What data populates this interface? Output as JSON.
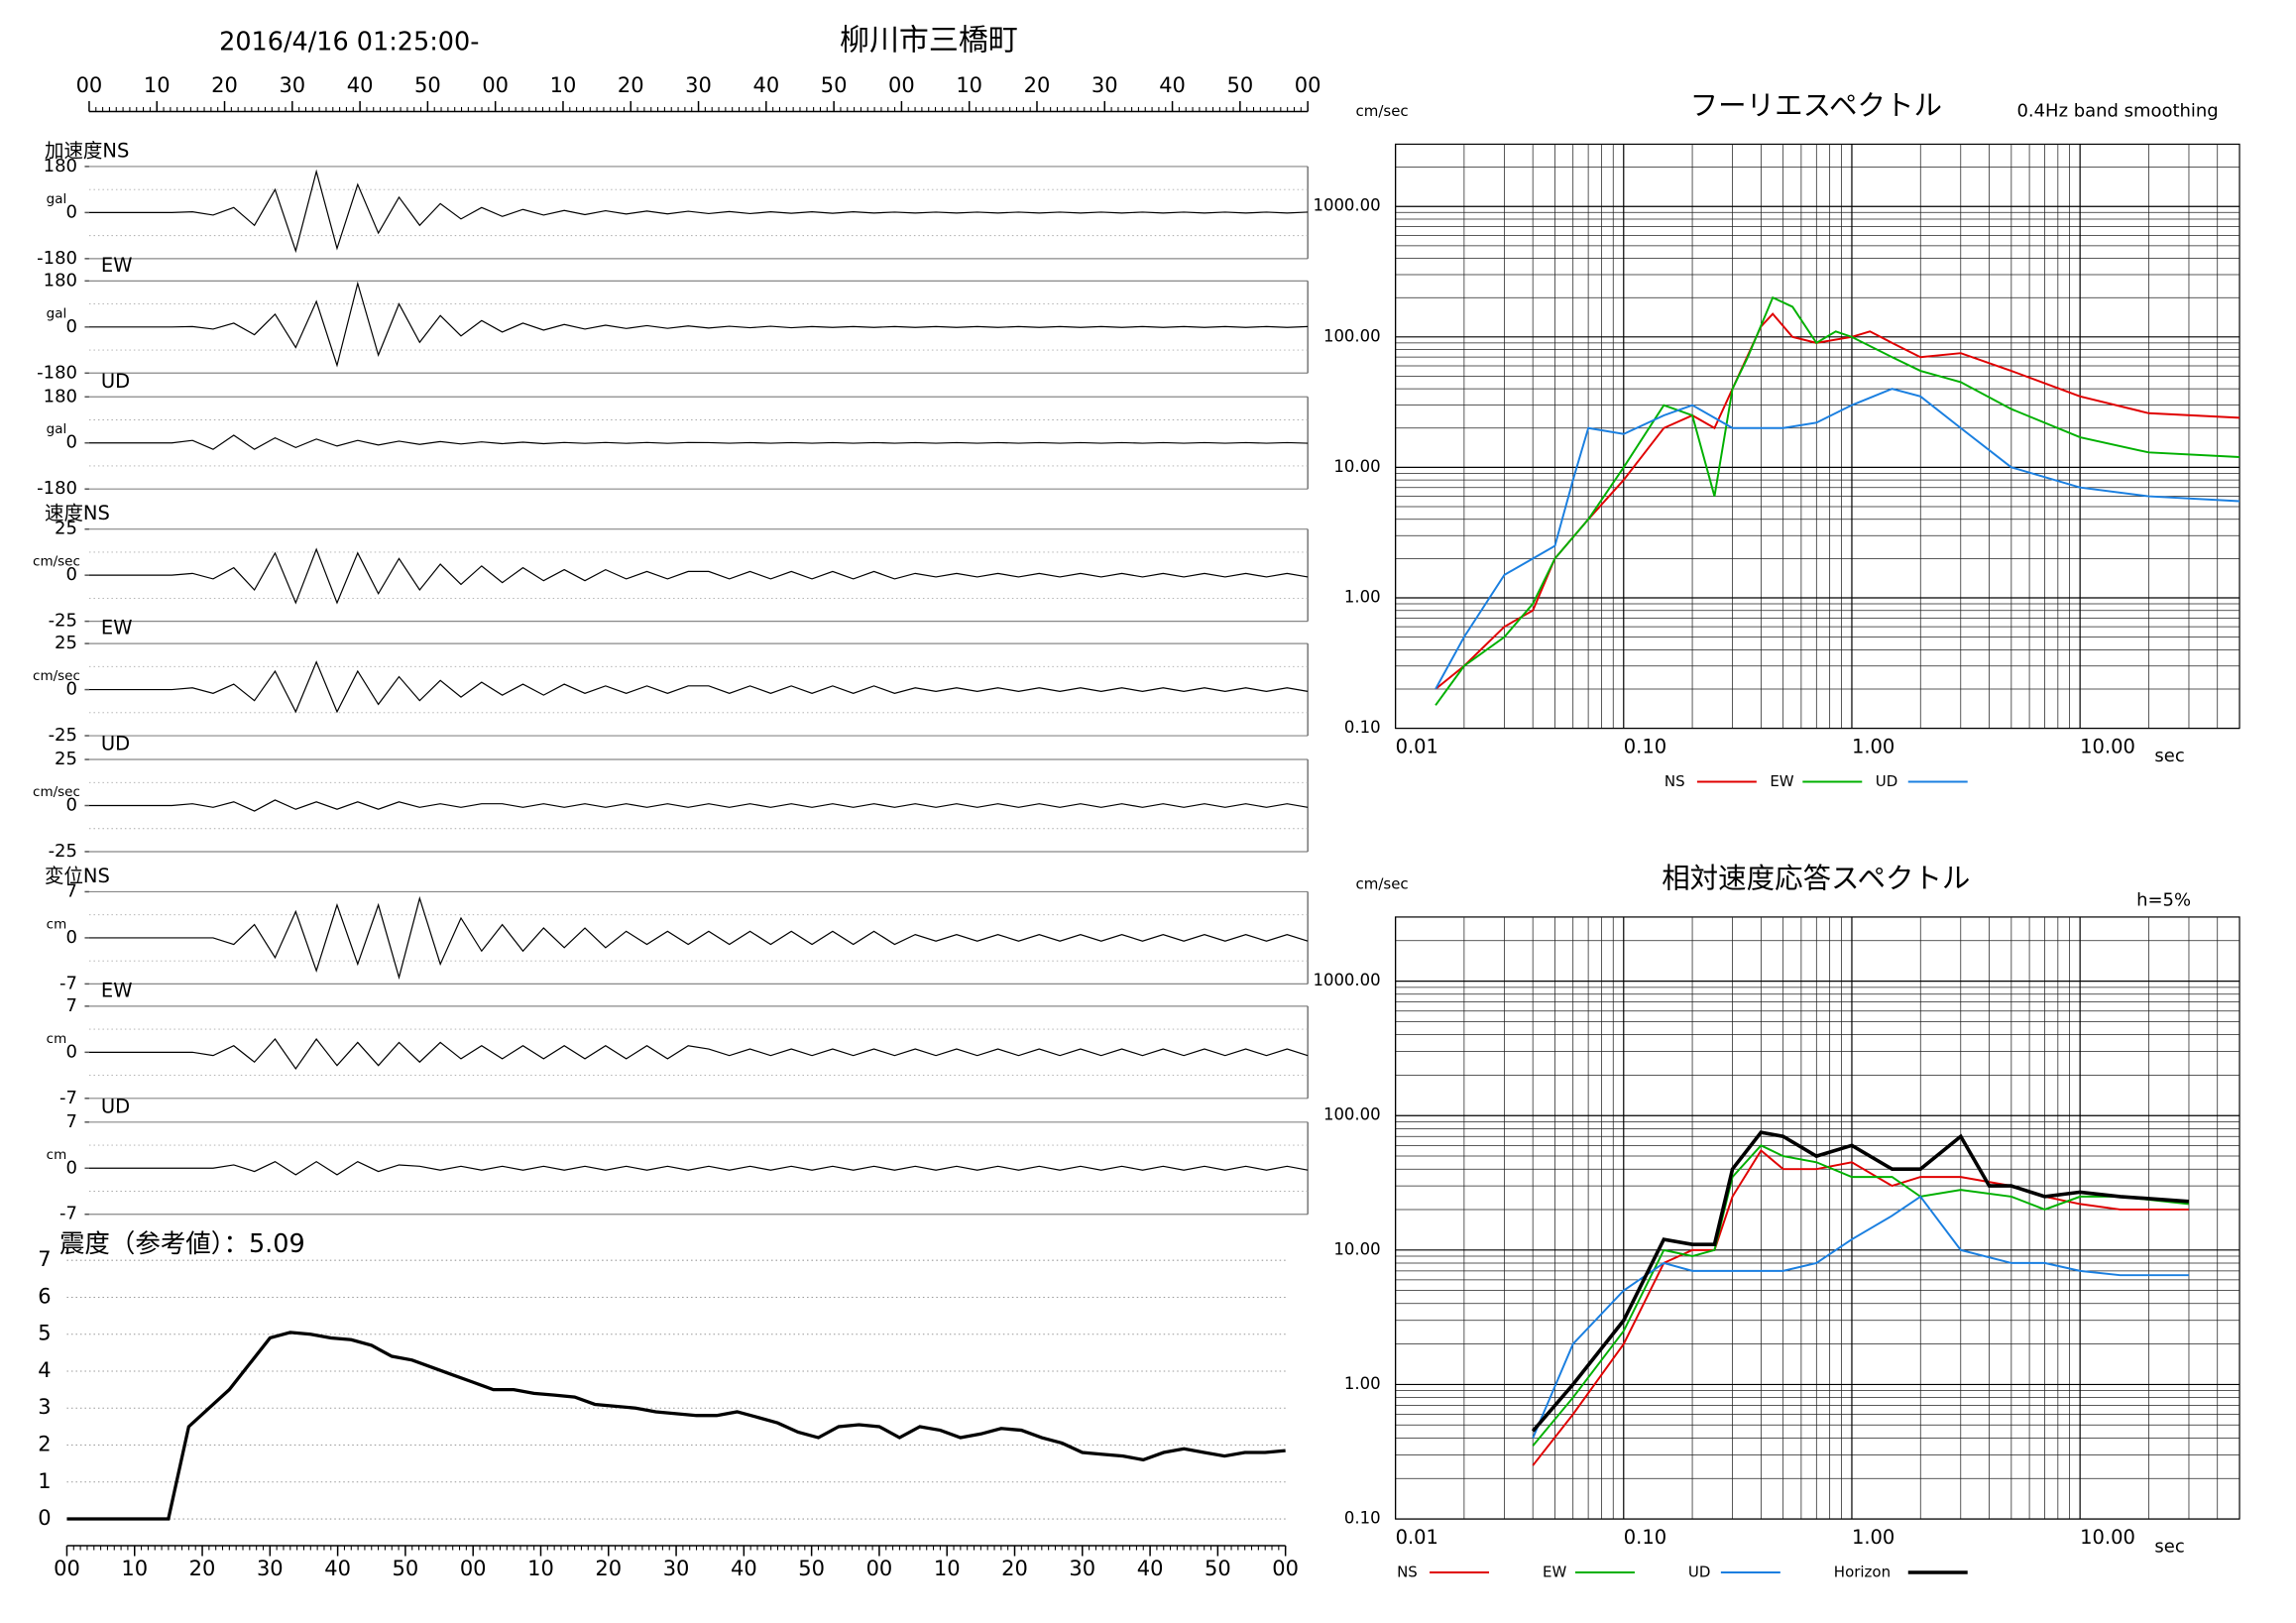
{
  "title": "柳川市三橋町",
  "start_time": "2016/4/16 01:25:00-",
  "chart_data": [
    {
      "type": "time_axis",
      "xlim": [
        0,
        180
      ],
      "xticks": [
        {
          "value": 0,
          "label": "00"
        },
        10,
        20,
        30,
        40,
        50,
        {
          "value": 60,
          "label": "00"
        },
        {
          "value": 70,
          "label": "10"
        },
        {
          "value": 80,
          "label": "20"
        },
        {
          "value": 90,
          "label": "30"
        },
        {
          "value": 100,
          "label": "40"
        },
        {
          "value": 110,
          "label": "50"
        },
        {
          "value": 120,
          "label": "00"
        },
        {
          "value": 130,
          "label": "10"
        },
        {
          "value": 140,
          "label": "20"
        },
        {
          "value": 150,
          "label": "30"
        },
        {
          "value": 160,
          "label": "40"
        },
        {
          "value": 170,
          "label": "50"
        },
        {
          "value": 180,
          "label": "00"
        }
      ]
    },
    {
      "type": "waveform",
      "label": "加速度NS",
      "unit": "gal",
      "xlim": [
        0,
        180
      ],
      "ylim": [
        -180,
        180
      ],
      "yticks": [
        -180,
        0,
        180
      ],
      "values": [
        0,
        0,
        0,
        0,
        0,
        3,
        -10,
        20,
        -50,
        90,
        -150,
        160,
        -140,
        110,
        -80,
        60,
        -50,
        35,
        -25,
        20,
        -15,
        12,
        -10,
        8,
        -8,
        7,
        -6,
        6,
        -5,
        5,
        -4,
        4,
        -4,
        3,
        -3,
        3,
        -3,
        3,
        -2,
        2,
        -2,
        2,
        -2,
        2,
        -2,
        2,
        -2,
        2,
        -2,
        2,
        -2,
        2,
        -2,
        2,
        -2,
        2,
        -2,
        2,
        -2,
        2
      ]
    },
    {
      "type": "waveform",
      "label": "EW",
      "unit": "gal",
      "xlim": [
        0,
        180
      ],
      "ylim": [
        -180,
        180
      ],
      "yticks": [
        -180,
        0,
        180
      ],
      "values": [
        0,
        0,
        0,
        0,
        0,
        2,
        -8,
        15,
        -30,
        50,
        -80,
        100,
        -150,
        170,
        -110,
        90,
        -60,
        45,
        -35,
        25,
        -20,
        15,
        -12,
        10,
        -8,
        7,
        -6,
        5,
        -5,
        4,
        -4,
        3,
        -3,
        3,
        -3,
        2,
        -2,
        2,
        -2,
        2,
        -2,
        2,
        -2,
        2,
        -2,
        2,
        -2,
        2,
        -2,
        2,
        -2,
        2,
        -2,
        2,
        -2,
        2,
        -2,
        2,
        -2,
        2
      ]
    },
    {
      "type": "waveform",
      "label": "UD",
      "unit": "gal",
      "xlim": [
        0,
        180
      ],
      "ylim": [
        -180,
        180
      ],
      "yticks": [
        -180,
        0,
        180
      ],
      "values": [
        0,
        0,
        0,
        0,
        0,
        10,
        -25,
        30,
        -25,
        20,
        -18,
        15,
        -12,
        10,
        -8,
        7,
        -6,
        5,
        -4,
        4,
        -3,
        3,
        -3,
        2,
        -2,
        2,
        -2,
        2,
        -2,
        2,
        1,
        -1,
        1,
        -1,
        1,
        -1,
        1,
        -1,
        1,
        -1,
        1,
        -1,
        1,
        -1,
        1,
        -1,
        1,
        -1,
        1,
        -1,
        1,
        -1,
        1,
        -1,
        1,
        -1,
        1,
        -1,
        1,
        -1
      ]
    },
    {
      "type": "waveform",
      "label": "速度NS",
      "unit": "cm/sec",
      "xlim": [
        0,
        180
      ],
      "ylim": [
        -25,
        25
      ],
      "yticks": [
        -25,
        0,
        25
      ],
      "values": [
        0,
        0,
        0,
        0,
        0,
        1,
        -2,
        4,
        -8,
        12,
        -15,
        14,
        -15,
        12,
        -10,
        9,
        -8,
        6,
        -5,
        5,
        -4,
        4,
        -3,
        3,
        -3,
        3,
        -2,
        2,
        -2,
        2,
        2,
        -2,
        2,
        -2,
        2,
        -2,
        2,
        -2,
        2,
        -2,
        1,
        -1,
        1,
        -1,
        1,
        -1,
        1,
        -1,
        1,
        -1,
        1,
        -1,
        1,
        -1,
        1,
        -1,
        1,
        -1,
        1,
        -1
      ]
    },
    {
      "type": "waveform",
      "label": "EW",
      "unit": "cm/sec",
      "xlim": [
        0,
        180
      ],
      "ylim": [
        -25,
        25
      ],
      "yticks": [
        -25,
        0,
        25
      ],
      "values": [
        0,
        0,
        0,
        0,
        0,
        1,
        -2,
        3,
        -6,
        10,
        -12,
        15,
        -12,
        10,
        -8,
        7,
        -6,
        5,
        -4,
        4,
        -3,
        3,
        -3,
        3,
        -2,
        2,
        -2,
        2,
        -2,
        2,
        2,
        -2,
        2,
        -2,
        2,
        -2,
        2,
        -2,
        2,
        -2,
        1,
        -1,
        1,
        -1,
        1,
        -1,
        1,
        -1,
        1,
        -1,
        1,
        -1,
        1,
        -1,
        1,
        -1,
        1,
        -1,
        1,
        -1
      ]
    },
    {
      "type": "waveform",
      "label": "UD",
      "unit": "cm/sec",
      "xlim": [
        0,
        180
      ],
      "ylim": [
        -25,
        25
      ],
      "yticks": [
        -25,
        0,
        25
      ],
      "values": [
        0,
        0,
        0,
        0,
        0,
        1,
        -1,
        2,
        -3,
        3,
        -2,
        2,
        -2,
        2,
        -2,
        2,
        -1,
        1,
        -1,
        1,
        1,
        -1,
        1,
        -1,
        1,
        -1,
        1,
        -1,
        1,
        -1,
        1,
        -1,
        1,
        -1,
        1,
        -1,
        1,
        -1,
        1,
        -1,
        1,
        -1,
        1,
        -1,
        1,
        -1,
        1,
        -1,
        1,
        -1,
        1,
        -1,
        1,
        -1,
        1,
        -1,
        1,
        -1,
        1,
        -1
      ]
    },
    {
      "type": "waveform",
      "label": "変位NS",
      "unit": "cm",
      "xlim": [
        0,
        180
      ],
      "ylim": [
        -7,
        7
      ],
      "yticks": [
        -7,
        0,
        7
      ],
      "values": [
        0,
        0,
        0,
        0,
        0,
        0,
        0,
        -1,
        2,
        -3,
        4,
        -5,
        5,
        -4,
        5,
        -6,
        6,
        -4,
        3,
        -2,
        2,
        -2,
        1.5,
        -1.5,
        1.5,
        -1.5,
        1,
        -1,
        1,
        -1,
        1,
        -1,
        1,
        -1,
        1,
        -1,
        1,
        -1,
        1,
        -1,
        0.5,
        -0.5,
        0.5,
        -0.5,
        0.5,
        -0.5,
        0.5,
        -0.5,
        0.5,
        -0.5,
        0.5,
        -0.5,
        0.5,
        -0.5,
        0.5,
        -0.5,
        0.5,
        -0.5,
        0.5,
        -0.5
      ]
    },
    {
      "type": "waveform",
      "label": "EW",
      "unit": "cm",
      "xlim": [
        0,
        180
      ],
      "ylim": [
        -7,
        7
      ],
      "yticks": [
        -7,
        0,
        7
      ],
      "values": [
        0,
        0,
        0,
        0,
        0,
        0,
        -0.5,
        1,
        -1.5,
        2,
        -2.5,
        2,
        -2,
        1.5,
        -2,
        1.5,
        -1.5,
        1.5,
        -1,
        1,
        -1,
        1,
        -1,
        1,
        -1,
        1,
        -1,
        1,
        -1,
        1,
        0.5,
        -0.5,
        0.5,
        -0.5,
        0.5,
        -0.5,
        0.5,
        -0.5,
        0.5,
        -0.5,
        0.5,
        -0.5,
        0.5,
        -0.5,
        0.5,
        -0.5,
        0.5,
        -0.5,
        0.5,
        -0.5,
        0.5,
        -0.5,
        0.5,
        -0.5,
        0.5,
        -0.5,
        0.5,
        -0.5,
        0.5,
        -0.5
      ]
    },
    {
      "type": "waveform",
      "label": "UD",
      "unit": "cm",
      "xlim": [
        0,
        180
      ],
      "ylim": [
        -7,
        7
      ],
      "yticks": [
        -7,
        0,
        7
      ],
      "values": [
        0,
        0,
        0,
        0,
        0,
        0,
        0,
        0.5,
        -0.5,
        1,
        -1,
        1,
        -1,
        1,
        -0.5,
        0.5,
        0.3,
        -0.3,
        0.3,
        -0.3,
        0.3,
        -0.3,
        0.3,
        -0.3,
        0.3,
        -0.3,
        0.3,
        -0.3,
        0.3,
        -0.3,
        0.3,
        -0.3,
        0.3,
        -0.3,
        0.3,
        -0.3,
        0.3,
        -0.3,
        0.3,
        -0.3,
        0.3,
        -0.3,
        0.3,
        -0.3,
        0.3,
        -0.3,
        0.3,
        -0.3,
        0.3,
        -0.3,
        0.3,
        -0.3,
        0.3,
        -0.3,
        0.3,
        -0.3,
        0.3,
        -0.3,
        0.3,
        -0.3
      ]
    },
    {
      "type": "intensity",
      "title": "震度（参考値）：5.09",
      "color": "#000000",
      "xlim": [
        0,
        180
      ],
      "ylim": [
        0,
        7
      ],
      "yticks": [
        0,
        1,
        2,
        3,
        4,
        5,
        6,
        7
      ],
      "xticks": [
        {
          "value": 0,
          "label": "00"
        },
        10,
        20,
        30,
        40,
        50,
        {
          "value": 60,
          "label": "00"
        },
        {
          "value": 70,
          "label": "10"
        },
        {
          "value": 80,
          "label": "20"
        },
        {
          "value": 90,
          "label": "30"
        },
        {
          "value": 100,
          "label": "40"
        },
        {
          "value": 110,
          "label": "50"
        },
        {
          "value": 120,
          "label": "00"
        },
        {
          "value": 130,
          "label": "10"
        },
        {
          "value": 140,
          "label": "20"
        },
        {
          "value": 150,
          "label": "30"
        },
        {
          "value": 160,
          "label": "40"
        },
        {
          "value": 170,
          "label": "50"
        },
        {
          "value": 180,
          "label": "00"
        }
      ],
      "values": [
        0,
        0,
        0,
        0,
        0,
        0,
        2.5,
        3.0,
        3.5,
        4.2,
        4.9,
        5.05,
        5.0,
        4.9,
        4.85,
        4.7,
        4.4,
        4.3,
        4.1,
        3.9,
        3.7,
        3.5,
        3.5,
        3.4,
        3.35,
        3.3,
        3.1,
        3.05,
        3.0,
        2.9,
        2.85,
        2.8,
        2.8,
        2.9,
        2.75,
        2.6,
        2.35,
        2.2,
        2.5,
        2.55,
        2.5,
        2.2,
        2.5,
        2.4,
        2.2,
        2.3,
        2.45,
        2.4,
        2.2,
        2.05,
        1.8,
        1.75,
        1.7,
        1.6,
        1.8,
        1.9,
        1.8,
        1.7,
        1.8,
        1.8,
        1.85
      ]
    },
    {
      "type": "spectrum",
      "title": "フーリエスペクトル",
      "subtitle": "0.4Hz band smoothing",
      "ylabel": "cm/sec",
      "xlabel": "sec",
      "log": true,
      "xlim": [
        0.01,
        50
      ],
      "ylim": [
        0.1,
        3000
      ],
      "xticks": [
        0.01,
        {
          "value": 0.1,
          "label": "0.10"
        },
        {
          "value": 1,
          "label": "1.00"
        },
        {
          "value": 10,
          "label": "10.00"
        }
      ],
      "yticks": [
        {
          "value": 0.1,
          "label": "0.10"
        },
        {
          "value": 1,
          "label": "1.00"
        },
        {
          "value": 10,
          "label": "10.00"
        },
        {
          "value": 100,
          "label": "100.00"
        },
        {
          "value": 1000,
          "label": "1000.00"
        }
      ],
      "series": [
        {
          "name": "NS",
          "color": "#e00000",
          "x": [
            0.015,
            0.02,
            0.03,
            0.04,
            0.05,
            0.07,
            0.1,
            0.15,
            0.2,
            0.25,
            0.3,
            0.4,
            0.45,
            0.55,
            0.7,
            1,
            1.2,
            1.5,
            2,
            3,
            5,
            10,
            20,
            50
          ],
          "values": [
            0.2,
            0.3,
            0.6,
            0.8,
            2,
            4,
            8,
            20,
            25,
            20,
            40,
            120,
            150,
            100,
            90,
            100,
            110,
            90,
            70,
            75,
            55,
            35,
            26,
            24
          ]
        },
        {
          "name": "EW",
          "color": "#00b000",
          "x": [
            0.015,
            0.02,
            0.03,
            0.04,
            0.05,
            0.07,
            0.1,
            0.15,
            0.2,
            0.25,
            0.3,
            0.35,
            0.45,
            0.55,
            0.7,
            0.85,
            1,
            1.5,
            2,
            3,
            5,
            10,
            20,
            50
          ],
          "values": [
            0.15,
            0.3,
            0.5,
            0.9,
            2,
            4,
            10,
            30,
            25,
            6,
            40,
            70,
            200,
            170,
            90,
            110,
            100,
            70,
            55,
            45,
            28,
            17,
            13,
            12
          ]
        },
        {
          "name": "UD",
          "color": "#1a7fe0",
          "x": [
            0.015,
            0.02,
            0.03,
            0.04,
            0.05,
            0.06,
            0.07,
            0.1,
            0.15,
            0.2,
            0.3,
            0.5,
            0.7,
            1,
            1.5,
            2,
            3,
            5,
            10,
            20,
            50
          ],
          "values": [
            0.2,
            0.5,
            1.5,
            2,
            2.5,
            8,
            20,
            18,
            25,
            30,
            20,
            20,
            22,
            30,
            40,
            35,
            20,
            10,
            7,
            6,
            5.5
          ]
        }
      ]
    },
    {
      "type": "spectrum",
      "title": "相対速度応答スペクトル",
      "subtitle": "h=5%",
      "ylabel": "cm/sec",
      "xlabel": "sec",
      "log": true,
      "xlim": [
        0.01,
        50
      ],
      "ylim": [
        0.1,
        3000
      ],
      "xticks": [
        0.01,
        {
          "value": 0.1,
          "label": "0.10"
        },
        {
          "value": 1,
          "label": "1.00"
        },
        {
          "value": 10,
          "label": "10.00"
        }
      ],
      "yticks": [
        {
          "value": 0.1,
          "label": "0.10"
        },
        {
          "value": 1,
          "label": "1.00"
        },
        {
          "value": 10,
          "label": "10.00"
        },
        {
          "value": 100,
          "label": "100.00"
        },
        {
          "value": 1000,
          "label": "1000.00"
        }
      ],
      "series": [
        {
          "name": "NS",
          "color": "#e00000",
          "x": [
            0.04,
            0.06,
            0.1,
            0.15,
            0.2,
            0.25,
            0.3,
            0.4,
            0.5,
            0.7,
            1,
            1.5,
            2,
            3,
            5,
            7,
            10,
            15,
            30
          ],
          "values": [
            0.25,
            0.6,
            2,
            8,
            10,
            10,
            25,
            55,
            40,
            40,
            45,
            30,
            35,
            35,
            30,
            25,
            22,
            20,
            20
          ]
        },
        {
          "name": "EW",
          "color": "#00b000",
          "x": [
            0.04,
            0.06,
            0.1,
            0.15,
            0.2,
            0.25,
            0.3,
            0.4,
            0.5,
            0.7,
            1,
            1.5,
            2,
            3,
            5,
            7,
            10,
            15,
            30
          ],
          "values": [
            0.35,
            0.8,
            2.5,
            10,
            9,
            10,
            35,
            60,
            50,
            45,
            35,
            35,
            25,
            28,
            25,
            20,
            25,
            25,
            22
          ]
        },
        {
          "name": "UD",
          "color": "#1a7fe0",
          "x": [
            0.04,
            0.06,
            0.1,
            0.15,
            0.2,
            0.3,
            0.5,
            0.7,
            1,
            1.5,
            2,
            3,
            5,
            7,
            10,
            15,
            30
          ],
          "values": [
            0.4,
            2,
            5,
            8,
            7,
            7,
            7,
            8,
            12,
            18,
            25,
            10,
            8,
            8,
            7,
            6.5,
            6.5
          ]
        },
        {
          "name": "Horizon",
          "color": "#000000",
          "x": [
            0.04,
            0.06,
            0.1,
            0.15,
            0.2,
            0.25,
            0.3,
            0.4,
            0.5,
            0.7,
            1,
            1.5,
            2,
            3,
            4,
            5,
            7,
            10,
            15,
            30
          ],
          "values": [
            0.45,
            1,
            3,
            12,
            11,
            11,
            40,
            75,
            70,
            50,
            60,
            40,
            40,
            70,
            30,
            30,
            25,
            27,
            25,
            23
          ]
        }
      ]
    }
  ]
}
